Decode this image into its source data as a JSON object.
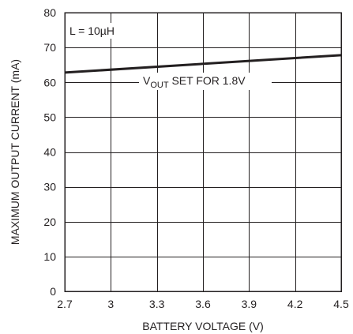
{
  "chart_data": {
    "type": "line",
    "title": "",
    "xlabel": "BATTERY VOLTAGE (V)",
    "ylabel": "MAXIMUM OUTPUT CURRENT (mA)",
    "xlim": [
      2.7,
      4.5
    ],
    "ylim": [
      0,
      80
    ],
    "x_ticks": [
      "2.7",
      "3",
      "3.3",
      "3.6",
      "3.9",
      "4.2",
      "4.5"
    ],
    "y_ticks": [
      "0",
      "10",
      "20",
      "30",
      "40",
      "50",
      "60",
      "70",
      "80"
    ],
    "grid": true,
    "series": [
      {
        "x": [
          2.7,
          4.5
        ],
        "y": [
          62.8,
          67.8
        ]
      }
    ],
    "annotations": {
      "inductor": "L = 10µH",
      "vout_main": "V",
      "vout_sub": "OUT",
      "vout_rest": " SET FOR 1.8V"
    }
  },
  "colors": {
    "ink": "#231f20",
    "background": "#ffffff"
  }
}
